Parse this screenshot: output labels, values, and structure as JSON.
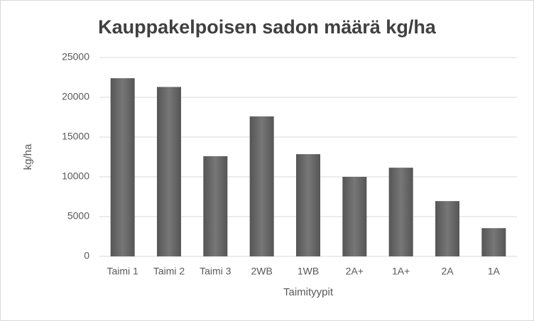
{
  "chart_data": {
    "type": "bar",
    "title": "Kauppakelpoisen sadon määrä kg/ha",
    "x_label": "Taimityypit",
    "y_label": "kg/ha",
    "categories": [
      "Taimi 1",
      "Taimi 2",
      "Taimi 3",
      "2WB",
      "1WB",
      "2A+",
      "1A+",
      "2A",
      "1A"
    ],
    "values": [
      22400,
      21300,
      12600,
      17600,
      12850,
      10000,
      11150,
      6950,
      3550
    ],
    "color": "#666666",
    "ylim": [
      0,
      25000
    ],
    "yticks": [
      0,
      5000,
      10000,
      15000,
      20000,
      25000
    ],
    "grid": true
  }
}
